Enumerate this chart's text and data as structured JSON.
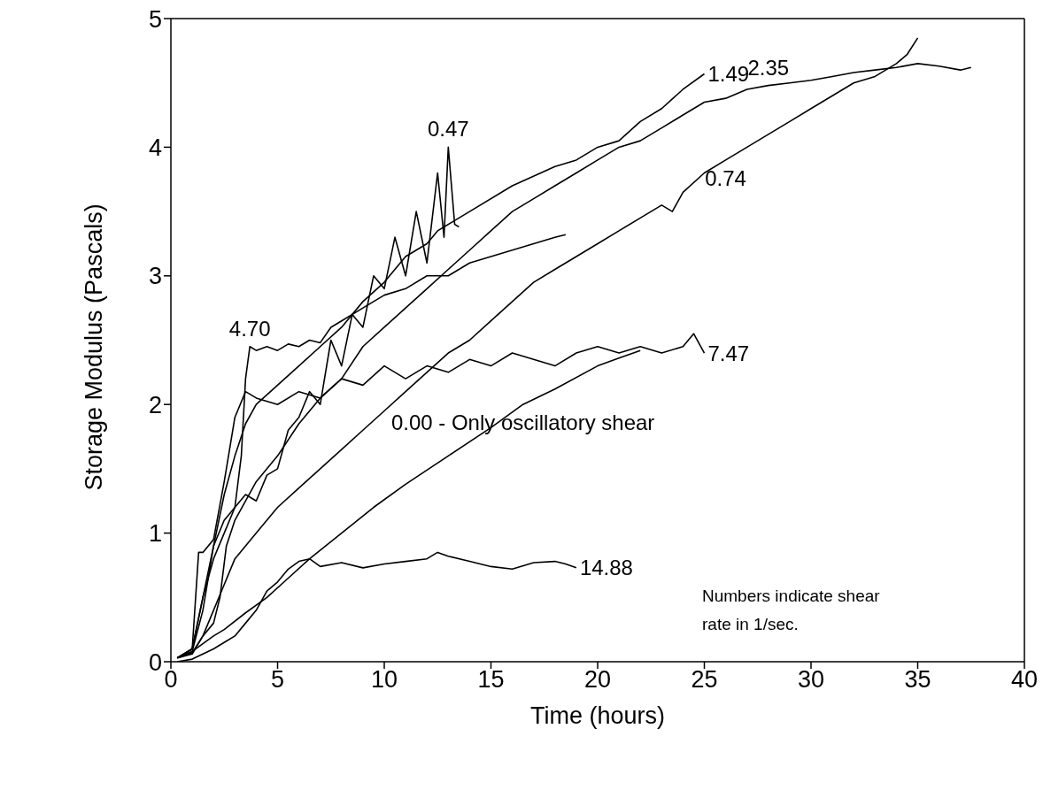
{
  "chart_data": {
    "type": "line",
    "xlabel": "Time (hours)",
    "ylabel": "Storage Modulus (Pascals)",
    "xlim": [
      0,
      40
    ],
    "ylim": [
      0,
      5
    ],
    "xticks": [
      0,
      5,
      10,
      15,
      20,
      25,
      30,
      35,
      40
    ],
    "yticks": [
      0,
      1,
      2,
      3,
      4,
      5
    ],
    "grid": false,
    "legend": false,
    "marker": "none",
    "line_style": "solid",
    "series": [
      {
        "color": "#000000",
        "x": [
          0.3,
          1.0,
          1.5,
          2.0,
          2.5,
          3.0,
          3.3,
          3.5,
          3.7,
          4.0,
          4.5,
          5.0,
          5.5,
          6.0,
          6.5,
          7.0,
          7.5,
          8.0,
          9.0,
          10.0,
          11.0,
          12.0,
          13.0,
          14.0,
          15.0,
          16.0,
          17.0,
          18.0,
          18.5
        ],
        "values": [
          0.03,
          0.1,
          0.5,
          0.8,
          1.0,
          1.2,
          1.6,
          2.2,
          2.45,
          2.42,
          2.45,
          2.42,
          2.47,
          2.45,
          2.5,
          2.48,
          2.6,
          2.65,
          2.75,
          2.85,
          2.9,
          3.0,
          3.0,
          3.1,
          3.15,
          3.2,
          3.25,
          3.3,
          3.32
        ]
      },
      {
        "color": "#000000",
        "x": [
          0.3,
          1.0,
          1.5,
          2.0,
          2.5,
          3.0,
          3.5,
          4.0,
          4.5,
          5.0,
          5.5,
          6.0,
          6.5,
          7.0,
          7.5,
          8.0,
          8.5,
          9.0,
          9.5,
          10.0,
          10.5,
          11.0,
          11.5,
          12.0,
          12.5,
          12.8,
          13.0,
          13.3,
          13.5
        ],
        "values": [
          0.03,
          0.1,
          0.5,
          0.9,
          1.1,
          1.2,
          1.3,
          1.25,
          1.45,
          1.5,
          1.8,
          1.9,
          2.1,
          2.0,
          2.5,
          2.3,
          2.7,
          2.6,
          3.0,
          2.9,
          3.3,
          3.0,
          3.5,
          3.1,
          3.8,
          3.3,
          4.0,
          3.4,
          3.38
        ]
      },
      {
        "color": "#000000",
        "x": [
          0.3,
          1.0,
          1.5,
          2.0,
          2.5,
          3.0,
          3.5,
          4.0,
          5.0,
          6.0,
          7.0,
          8.0,
          9.0,
          10.0,
          11.0,
          12.0,
          12.5,
          14.0,
          16.0,
          18.0,
          19.0,
          20.0,
          21.0,
          22.0,
          23.0,
          24.0,
          25.0
        ],
        "values": [
          0.03,
          0.08,
          0.4,
          0.9,
          1.3,
          1.6,
          1.85,
          2.0,
          2.15,
          2.3,
          2.45,
          2.6,
          2.8,
          2.95,
          3.15,
          3.25,
          3.35,
          3.5,
          3.7,
          3.85,
          3.9,
          4.0,
          4.05,
          4.2,
          4.3,
          4.45,
          4.57
        ]
      },
      {
        "color": "#000000",
        "x": [
          0.3,
          1.0,
          1.5,
          2.0,
          2.3,
          2.6,
          3.0,
          4.0,
          5.0,
          6.0,
          7.0,
          8.0,
          9.0,
          10.0,
          11.0,
          12.0,
          13.0,
          14.0,
          15.0,
          16.0,
          17.0,
          18.0,
          19.0,
          20.0,
          21.0,
          22.0,
          23.0,
          24.0,
          25.0,
          26.0,
          27.0,
          28.0,
          29.0,
          30.0,
          31.0,
          32.0,
          33.0,
          34.0,
          35.0,
          36.0,
          37.0,
          37.5
        ],
        "values": [
          0.03,
          0.07,
          0.2,
          0.3,
          0.5,
          0.9,
          1.1,
          1.4,
          1.6,
          1.85,
          2.05,
          2.2,
          2.45,
          2.6,
          2.75,
          2.9,
          3.05,
          3.2,
          3.35,
          3.5,
          3.6,
          3.7,
          3.8,
          3.9,
          4.0,
          4.05,
          4.15,
          4.25,
          4.35,
          4.38,
          4.45,
          4.48,
          4.5,
          4.52,
          4.55,
          4.58,
          4.6,
          4.62,
          4.65,
          4.63,
          4.6,
          4.62
        ]
      },
      {
        "color": "#000000",
        "x": [
          0.3,
          1.0,
          1.5,
          2.0,
          2.5,
          3.0,
          4.0,
          5.0,
          6.0,
          7.0,
          8.0,
          9.0,
          10.0,
          11.0,
          12.0,
          13.0,
          14.0,
          15.0,
          16.0,
          17.0,
          18.0,
          19.0,
          20.0,
          21.0,
          22.0,
          23.0,
          23.5,
          24.0,
          25.0,
          26.0,
          27.0,
          28.0,
          29.0,
          30.0,
          31.0,
          32.0,
          33.0,
          34.0,
          34.5,
          35.0
        ],
        "values": [
          0.03,
          0.06,
          0.2,
          0.4,
          0.6,
          0.8,
          1.0,
          1.2,
          1.35,
          1.5,
          1.65,
          1.8,
          1.95,
          2.1,
          2.25,
          2.4,
          2.5,
          2.65,
          2.8,
          2.95,
          3.05,
          3.15,
          3.25,
          3.35,
          3.45,
          3.55,
          3.5,
          3.65,
          3.8,
          3.9,
          4.0,
          4.1,
          4.2,
          4.3,
          4.4,
          4.5,
          4.55,
          4.65,
          4.72,
          4.85
        ]
      },
      {
        "color": "#000000",
        "x": [
          0.3,
          1.0,
          1.3,
          1.5,
          2.0,
          2.5,
          3.0,
          3.5,
          4.0,
          5.0,
          6.0,
          7.0,
          8.0,
          9.0,
          10.0,
          11.0,
          12.0,
          13.0,
          14.0,
          15.0,
          16.0,
          17.0,
          18.0,
          19.0,
          20.0,
          21.0,
          22.0,
          23.0,
          24.0,
          24.5,
          25.0
        ],
        "values": [
          0.03,
          0.1,
          0.85,
          0.85,
          0.95,
          1.4,
          1.9,
          2.1,
          2.05,
          2.0,
          2.1,
          2.05,
          2.2,
          2.15,
          2.3,
          2.2,
          2.3,
          2.25,
          2.35,
          2.3,
          2.4,
          2.35,
          2.3,
          2.4,
          2.45,
          2.4,
          2.45,
          2.4,
          2.45,
          2.55,
          2.4
        ]
      },
      {
        "color": "#000000",
        "x": [
          0.3,
          1.0,
          2.0,
          2.5,
          3.5,
          4.5,
          5.5,
          6.5,
          8.0,
          9.5,
          11.0,
          13.0,
          15.0,
          16.5,
          18.0,
          20.0,
          21.0,
          22.0
        ],
        "values": [
          0.03,
          0.08,
          0.2,
          0.25,
          0.38,
          0.5,
          0.65,
          0.8,
          1.0,
          1.2,
          1.38,
          1.6,
          1.82,
          2.0,
          2.12,
          2.3,
          2.36,
          2.42
        ]
      },
      {
        "color": "#000000",
        "x": [
          0.3,
          1.0,
          2.0,
          3.0,
          3.5,
          4.0,
          4.5,
          5.0,
          5.5,
          6.0,
          6.5,
          7.0,
          8.0,
          9.0,
          10.0,
          11.0,
          12.0,
          12.5,
          13.0,
          14.0,
          15.0,
          16.0,
          17.0,
          18.0,
          18.5,
          19.0
        ],
        "values": [
          0.0,
          0.02,
          0.1,
          0.2,
          0.3,
          0.4,
          0.55,
          0.62,
          0.72,
          0.78,
          0.8,
          0.74,
          0.77,
          0.73,
          0.76,
          0.78,
          0.8,
          0.85,
          0.82,
          0.78,
          0.74,
          0.72,
          0.77,
          0.78,
          0.76,
          0.73
        ]
      }
    ],
    "annotations": [
      {
        "text": "4.70",
        "x": 3.7,
        "y": 2.45
      },
      {
        "text": "0.47",
        "x": 13.0,
        "y": 4.0
      },
      {
        "text": "1.49",
        "x": 25.0,
        "y": 4.57
      },
      {
        "text": "2.35",
        "x": 28.0,
        "y": 4.48
      },
      {
        "text": "0.74",
        "x": 26.0,
        "y": 3.9
      },
      {
        "text": "7.47",
        "x": 25.0,
        "y": 2.4
      },
      {
        "text": "0.00 - Only oscillatory shear",
        "x": 16.5,
        "y": 2.0
      },
      {
        "text": "14.88",
        "x": 19.0,
        "y": 0.73
      },
      "Numbers indicate shear rate in 1/sec."
    ]
  }
}
